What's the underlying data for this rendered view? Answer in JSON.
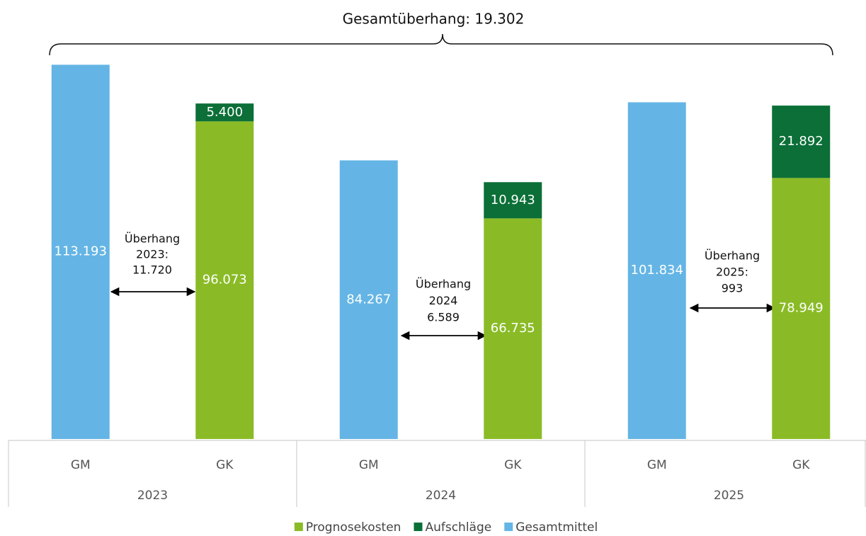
{
  "chart_data": {
    "type": "stacked_bar",
    "title": "Gesamtüberhang: 19.302",
    "categories": [
      "GM",
      "GK",
      "GM",
      "GK",
      "GM",
      "GK"
    ],
    "groups": [
      "2023",
      "2024",
      "2025"
    ],
    "series": [
      {
        "name": "Prognosekosten",
        "color": "#8abb26",
        "values": [
          null,
          96073,
          null,
          66735,
          null,
          78949
        ],
        "value_labels": [
          null,
          "96.073",
          null,
          "66.735",
          null,
          "78.949"
        ]
      },
      {
        "name": "Aufschläge",
        "color": "#0b6f37",
        "values": [
          null,
          5400,
          null,
          10943,
          null,
          21892
        ],
        "value_labels": [
          null,
          "5.400",
          null,
          "10.943",
          null,
          "21.892"
        ]
      },
      {
        "name": "Gesamtmittel",
        "color": "#64b5e5",
        "values": [
          113193,
          null,
          84267,
          null,
          101834,
          null
        ],
        "value_labels": [
          "113.193",
          null,
          "84.267",
          null,
          "101.834",
          null
        ]
      }
    ],
    "annotations": [
      {
        "lines": [
          "Überhang",
          "2023:",
          "11.720"
        ]
      },
      {
        "lines": [
          "Überhang",
          "2024",
          "6.589"
        ]
      },
      {
        "lines": [
          "Überhang",
          "2025:",
          "993"
        ]
      }
    ],
    "ylim": [
      0,
      115000
    ]
  }
}
